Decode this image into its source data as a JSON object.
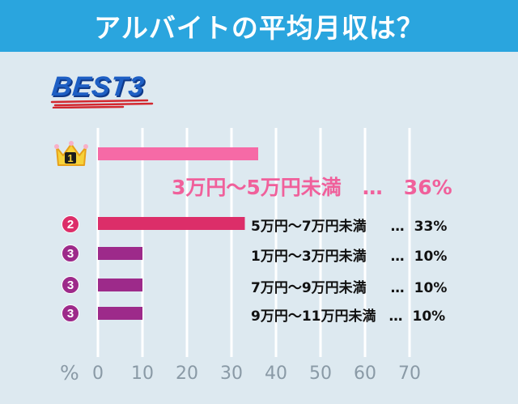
{
  "header": {
    "title": "アルバイトの平均月収は？"
  },
  "badge": {
    "text": "BEST3"
  },
  "colors": {
    "header_bg": "#2aa5de",
    "panel_bg": "#dde9f0",
    "rank1": "#f66aa6",
    "rank2": "#dc2e69",
    "rank3": "#9d2a8a",
    "highlight_text": "#f0609b",
    "axis": "#8a9aa6"
  },
  "icons": {
    "rank1": "crown-icon"
  },
  "chart_data": {
    "type": "bar",
    "orientation": "horizontal",
    "x_unit": "%",
    "xlim": [
      0,
      70
    ],
    "x_ticks": [
      "0",
      "10",
      "20",
      "30",
      "40",
      "50",
      "60",
      "70"
    ],
    "grid": true,
    "bars": [
      {
        "rank": "1",
        "label": "3万円〜5万円未満",
        "dots": "…",
        "value": 36,
        "value_label": "36%"
      },
      {
        "rank": "2",
        "label": "5万円〜7万円未満",
        "dots": "…",
        "value": 33,
        "value_label": "33%"
      },
      {
        "rank": "3",
        "label": "1万円〜3万円未満",
        "dots": "…",
        "value": 10,
        "value_label": "10%"
      },
      {
        "rank": "3",
        "label": "7万円〜9万円未満",
        "dots": "…",
        "value": 10,
        "value_label": "10%"
      },
      {
        "rank": "3",
        "label": "9万円〜11万円未満",
        "dots": "…",
        "value": 10,
        "value_label": "10%"
      }
    ]
  }
}
